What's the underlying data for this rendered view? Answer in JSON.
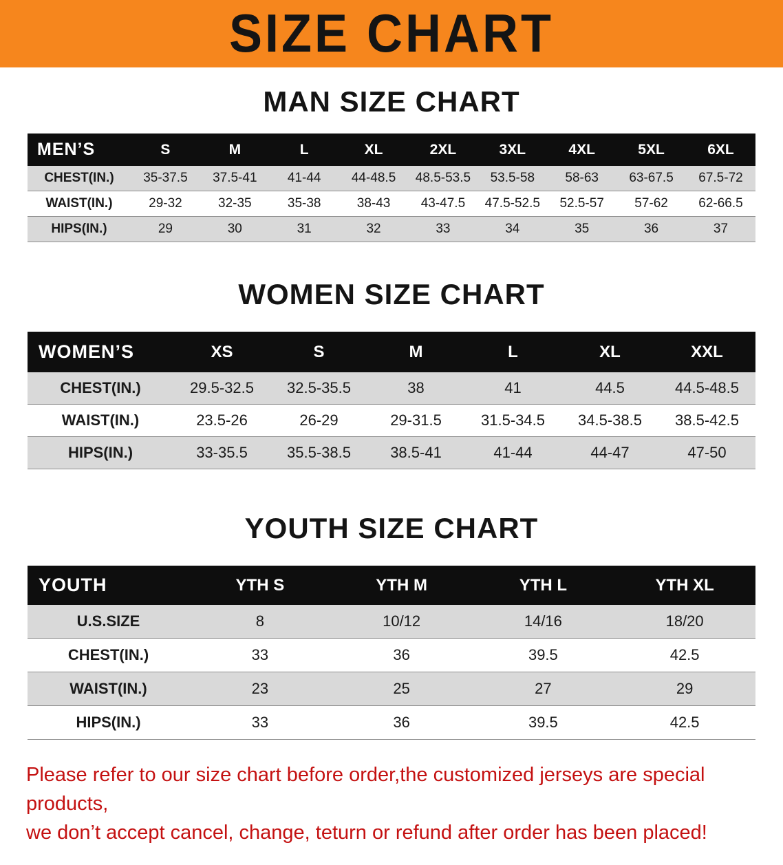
{
  "banner": {
    "title": "SIZE CHART"
  },
  "colors": {
    "banner_bg": "#f6861d",
    "table_header_bg": "#0e0e0e",
    "row_shade": "#d9d9d9",
    "notice_text": "#c41111"
  },
  "chart_data": [
    {
      "type": "table",
      "title": "MAN SIZE CHART",
      "corner_label": "MEN’S",
      "columns": [
        "S",
        "M",
        "L",
        "XL",
        "2XL",
        "3XL",
        "4XL",
        "5XL",
        "6XL"
      ],
      "rows": [
        {
          "label": "CHEST(IN.)",
          "values": [
            "35-37.5",
            "37.5-41",
            "41-44",
            "44-48.5",
            "48.5-53.5",
            "53.5-58",
            "58-63",
            "63-67.5",
            "67.5-72"
          ]
        },
        {
          "label": "WAIST(IN.)",
          "values": [
            "29-32",
            "32-35",
            "35-38",
            "38-43",
            "43-47.5",
            "47.5-52.5",
            "52.5-57",
            "57-62",
            "62-66.5"
          ]
        },
        {
          "label": "HIPS(IN.)",
          "values": [
            "29",
            "30",
            "31",
            "32",
            "33",
            "34",
            "35",
            "36",
            "37"
          ]
        }
      ]
    },
    {
      "type": "table",
      "title": "WOMEN SIZE CHART",
      "corner_label": "WOMEN’S",
      "columns": [
        "XS",
        "S",
        "M",
        "L",
        "XL",
        "XXL"
      ],
      "rows": [
        {
          "label": "CHEST(IN.)",
          "values": [
            "29.5-32.5",
            "32.5-35.5",
            "38",
            "41",
            "44.5",
            "44.5-48.5"
          ]
        },
        {
          "label": "WAIST(IN.)",
          "values": [
            "23.5-26",
            "26-29",
            "29-31.5",
            "31.5-34.5",
            "34.5-38.5",
            "38.5-42.5"
          ]
        },
        {
          "label": "HIPS(IN.)",
          "values": [
            "33-35.5",
            "35.5-38.5",
            "38.5-41",
            "41-44",
            "44-47",
            "47-50"
          ]
        }
      ]
    },
    {
      "type": "table",
      "title": "YOUTH SIZE CHART",
      "corner_label": "YOUTH",
      "columns": [
        "YTH S",
        "YTH M",
        "YTH L",
        "YTH XL"
      ],
      "rows": [
        {
          "label": "U.S.SIZE",
          "values": [
            "8",
            "10/12",
            "14/16",
            "18/20"
          ]
        },
        {
          "label": "CHEST(IN.)",
          "values": [
            "33",
            "36",
            "39.5",
            "42.5"
          ]
        },
        {
          "label": "WAIST(IN.)",
          "values": [
            "23",
            "25",
            "27",
            "29"
          ]
        },
        {
          "label": "HIPS(IN.)",
          "values": [
            "33",
            "36",
            "39.5",
            "42.5"
          ]
        }
      ]
    }
  ],
  "footer": {
    "line1": "Please refer to our size chart before order,the customized jerseys are special products,",
    "line2": "we don’t accept cancel, change, teturn or refund after order has been placed!"
  }
}
